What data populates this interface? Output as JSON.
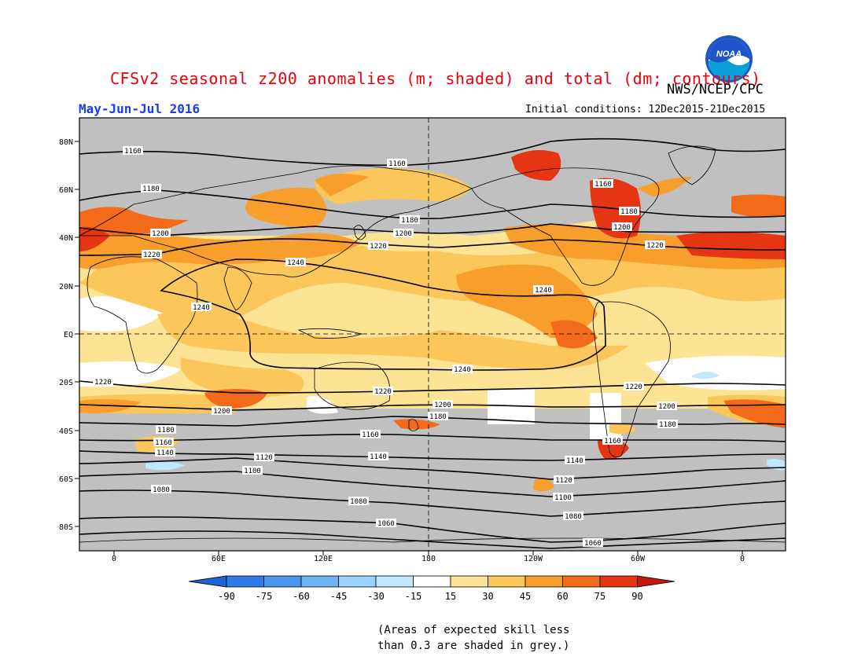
{
  "title": "CFSv2 seasonal z200 anomalies (m; shaded) and total (dm; contours)",
  "agency": "NWS/NCEP/CPC",
  "logo_text": "NOAA",
  "period": "May-Jun-Jul 2016",
  "initial_conditions": "Initial conditions: 12Dec2015-21Dec2015",
  "lat_labels": [
    "80N",
    "60N",
    "40N",
    "20N",
    "EQ",
    "20S",
    "40S",
    "60S",
    "80S"
  ],
  "lon_labels": [
    "0",
    "60E",
    "120E",
    "180",
    "120W",
    "60W",
    "0"
  ],
  "colorbar": {
    "labels": [
      "-90",
      "-75",
      "-60",
      "-45",
      "-30",
      "-15",
      "15",
      "30",
      "45",
      "60",
      "75",
      "90"
    ],
    "colors": [
      "#1e64d2",
      "#2d7be6",
      "#4a96ee",
      "#6eb4f5",
      "#9ad2fa",
      "#bfe8fc",
      "#ffffff",
      "#fde394",
      "#fbc75a",
      "#f89e2c",
      "#f36a1a",
      "#e63512",
      "#c8140e"
    ]
  },
  "contour_labels": [
    "1160",
    "1160",
    "1180",
    "1180",
    "1200",
    "1200",
    "1220",
    "1220",
    "1240",
    "1240",
    "1240",
    "1160",
    "1180",
    "1200",
    "1220",
    "1220",
    "1220",
    "1200",
    "1200",
    "1180",
    "1180",
    "1160",
    "1160",
    "1140",
    "1140",
    "1140",
    "1120",
    "1120",
    "1100",
    "1100",
    "1080",
    "1080",
    "1080",
    "1060",
    "1060"
  ],
  "note": "(Areas of expected skill less\nthan 0.3 are shaded in grey.)"
}
